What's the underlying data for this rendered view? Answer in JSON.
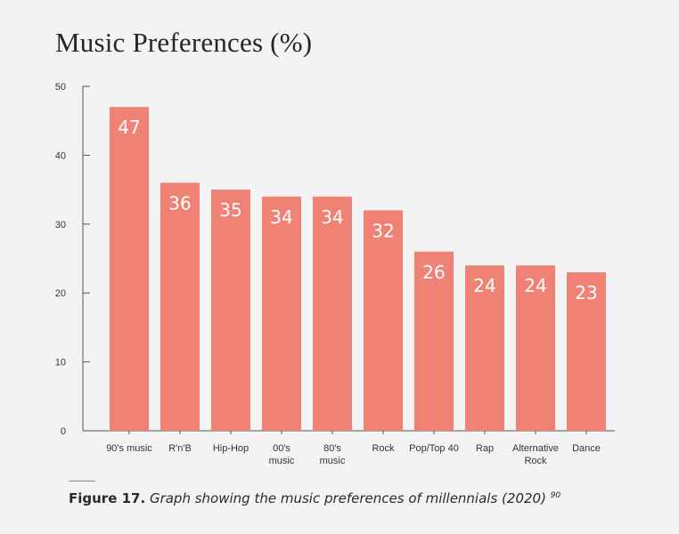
{
  "chart_data": {
    "type": "bar",
    "title": "Music Preferences (%)",
    "categories": [
      "90's music",
      "R'n'B",
      "Hip-Hop",
      "00's music",
      "80's music",
      "Rock",
      "Pop/Top 40",
      "Rap",
      "Alternative Rock",
      "Dance"
    ],
    "category_lines": [
      [
        "90's music"
      ],
      [
        "R'n'B"
      ],
      [
        "Hip-Hop"
      ],
      [
        "00's",
        "music"
      ],
      [
        "80's",
        "music"
      ],
      [
        "Rock"
      ],
      [
        "Pop/Top 40"
      ],
      [
        "Rap"
      ],
      [
        "Alternative",
        "Rock"
      ],
      [
        "Dance"
      ]
    ],
    "values": [
      47,
      36,
      35,
      34,
      34,
      32,
      26,
      24,
      24,
      23
    ],
    "ylim": [
      0,
      50
    ],
    "yticks": [
      0,
      10,
      20,
      30,
      40,
      50
    ],
    "xlabel": "",
    "ylabel": "",
    "grid": false,
    "bar_color": "#ef8275",
    "value_label_color": "#ffffff"
  },
  "caption": {
    "lead": "Figure 17.",
    "description": "Graph showing the music preferences of millennials (2020)",
    "superscript": "90"
  }
}
